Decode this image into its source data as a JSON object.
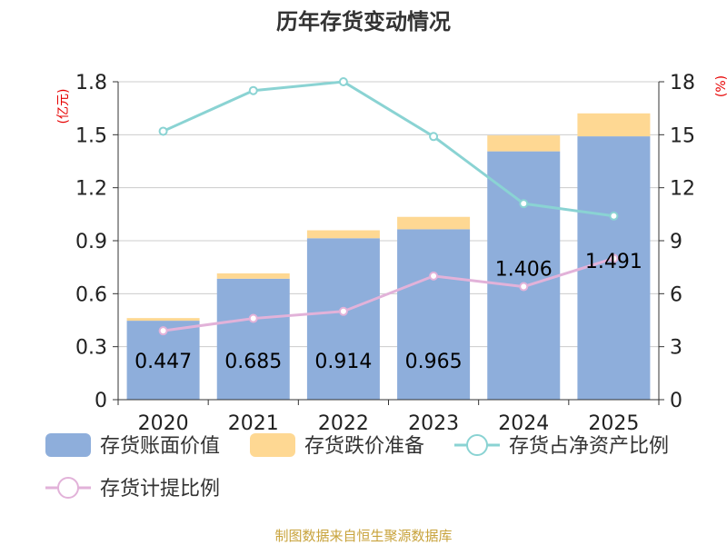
{
  "chart_data": {
    "type": "bar",
    "title": "历年存货变动情况",
    "categories": [
      "2020",
      "2021",
      "2022",
      "2023",
      "2024",
      "2025"
    ],
    "ylabel": "(亿元)",
    "y2label": "(%)",
    "ylim": [
      0,
      1.8
    ],
    "yticks": [
      "0",
      "0.3",
      "0.6",
      "0.9",
      "1.2",
      "1.5",
      "1.8"
    ],
    "y2lim": [
      0,
      18
    ],
    "y2ticks": [
      "0",
      "3",
      "6",
      "9",
      "12",
      "15",
      "18"
    ],
    "stacked": true,
    "grid": true,
    "legend_position": "bottom",
    "series": [
      {
        "name": "存货账面价值",
        "kind": "bar",
        "axis": "left",
        "color": "#8eaedb",
        "values": [
          0.447,
          0.685,
          0.914,
          0.965,
          1.406,
          1.491
        ],
        "labels": [
          "0.447",
          "0.685",
          "0.914",
          "0.965",
          "1.406",
          "1.491"
        ]
      },
      {
        "name": "存货跌价准备",
        "kind": "bar",
        "axis": "left",
        "color": "#fed893",
        "values": [
          0.015,
          0.03,
          0.045,
          0.07,
          0.09,
          0.13
        ]
      },
      {
        "name": "存货占净资产比例",
        "kind": "line",
        "axis": "right",
        "color": "#8ad3d3",
        "values": [
          15.2,
          17.5,
          18.0,
          14.9,
          11.1,
          10.4
        ]
      },
      {
        "name": "存货计提比例",
        "kind": "line",
        "axis": "right",
        "color": "#e2b2d9",
        "values": [
          3.9,
          4.6,
          5.0,
          7.0,
          6.4,
          8.0
        ]
      }
    ]
  },
  "source": "制图数据来自恒生聚源数据库"
}
